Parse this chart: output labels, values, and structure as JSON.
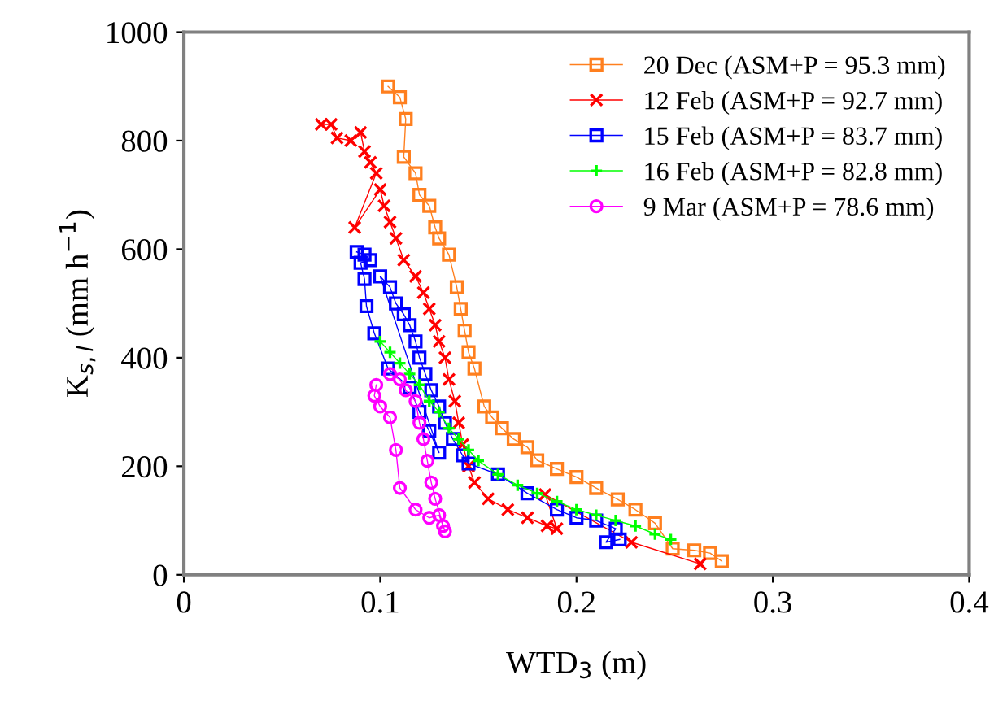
{
  "chart_data": {
    "type": "line",
    "xlabel": "WTD$_{3}$ (m)",
    "ylabel": "K$_{s,l}$ (mm h$^{−1}$)",
    "xlim": [
      0,
      0.4
    ],
    "ylim": [
      0,
      1000
    ],
    "xticks": [
      0,
      0.1,
      0.2,
      0.3,
      0.4
    ],
    "yticks": [
      0,
      200,
      400,
      600,
      800,
      1000
    ],
    "grid": false,
    "legend": "top right",
    "line_style": "solid",
    "series": [
      {
        "name": "20 Dec (ASM+P = 95.3 mm)",
        "color": "#ff7f1e",
        "marker": "square",
        "x": [
          0.104,
          0.11,
          0.113,
          0.112,
          0.118,
          0.12,
          0.125,
          0.128,
          0.13,
          0.135,
          0.139,
          0.141,
          0.143,
          0.145,
          0.148,
          0.153,
          0.157,
          0.162,
          0.168,
          0.175,
          0.18,
          0.19,
          0.2,
          0.21,
          0.221,
          0.23,
          0.24,
          0.249,
          0.26,
          0.268,
          0.274
        ],
        "values": [
          900,
          880,
          840,
          770,
          740,
          700,
          680,
          640,
          620,
          590,
          530,
          490,
          450,
          410,
          380,
          310,
          290,
          270,
          250,
          235,
          211,
          195,
          180,
          160,
          139,
          120,
          95,
          48,
          45,
          40,
          25
        ]
      },
      {
        "name": "12 Feb (ASM+P = 92.7 mm)",
        "color": "#ff0000",
        "marker": "cross",
        "x": [
          0.07,
          0.075,
          0.078,
          0.085,
          0.09,
          0.092,
          0.095,
          0.098,
          0.087,
          0.1,
          0.102,
          0.105,
          0.108,
          0.112,
          0.118,
          0.122,
          0.125,
          0.128,
          0.13,
          0.133,
          0.135,
          0.138,
          0.14,
          0.142,
          0.145,
          0.148,
          0.155,
          0.165,
          0.175,
          0.185,
          0.19,
          0.184,
          0.228,
          0.263
        ],
        "values": [
          830,
          830,
          805,
          800,
          815,
          780,
          760,
          740,
          640,
          710,
          680,
          650,
          620,
          580,
          550,
          520,
          490,
          460,
          430,
          400,
          360,
          320,
          280,
          240,
          200,
          170,
          140,
          120,
          105,
          90,
          85,
          148,
          60,
          20
        ]
      },
      {
        "name": "15 Feb (ASM+P = 83.7 mm)",
        "color": "#0000ff",
        "marker": "square",
        "x": [
          0.088,
          0.092,
          0.095,
          0.09,
          0.092,
          0.093,
          0.097,
          0.104,
          0.115,
          0.12,
          0.125,
          0.13,
          0.1,
          0.105,
          0.108,
          0.112,
          0.115,
          0.118,
          0.12,
          0.123,
          0.126,
          0.13,
          0.133,
          0.137,
          0.142,
          0.145,
          0.16,
          0.175,
          0.19,
          0.2,
          0.21,
          0.22,
          0.215,
          0.222
        ],
        "values": [
          595,
          590,
          580,
          575,
          545,
          495,
          445,
          380,
          345,
          300,
          265,
          225,
          550,
          530,
          500,
          480,
          460,
          430,
          400,
          370,
          340,
          310,
          280,
          250,
          220,
          205,
          185,
          150,
          120,
          105,
          100,
          85,
          60,
          65
        ]
      },
      {
        "name": "16 Feb (ASM+P = 82.8 mm)",
        "color": "#00ff00",
        "marker": "plus",
        "x": [
          0.1,
          0.105,
          0.11,
          0.115,
          0.12,
          0.125,
          0.13,
          0.135,
          0.14,
          0.145,
          0.15,
          0.16,
          0.17,
          0.18,
          0.19,
          0.2,
          0.21,
          0.22,
          0.23,
          0.24,
          0.248
        ],
        "values": [
          430,
          410,
          390,
          370,
          350,
          320,
          300,
          270,
          250,
          230,
          210,
          185,
          165,
          150,
          135,
          120,
          110,
          100,
          90,
          75,
          65
        ]
      },
      {
        "name": "9 Mar (ASM+P = 78.6 mm)",
        "color": "#ff00ff",
        "marker": "circle",
        "x": [
          0.098,
          0.097,
          0.1,
          0.105,
          0.108,
          0.11,
          0.118,
          0.125,
          0.13,
          0.132,
          0.133,
          0.128,
          0.126,
          0.124,
          0.122,
          0.12,
          0.118,
          0.113,
          0.11,
          0.105
        ],
        "values": [
          350,
          330,
          310,
          290,
          230,
          160,
          120,
          105,
          110,
          90,
          80,
          140,
          170,
          210,
          250,
          280,
          320,
          340,
          360,
          370
        ]
      }
    ]
  }
}
